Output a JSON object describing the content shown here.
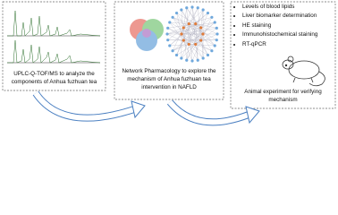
{
  "steps": [
    {
      "label": "UPLC-Q-TOF/MS to analyze the components of Anhua fuzhuan tea"
    },
    {
      "label": "Network Pharmacology to explore the mechanism of Anhua fuzhuan tea intervention in NAFLD"
    },
    {
      "label": "Animal experiment for verifying mechanism",
      "items": [
        "Levels of blood lipids",
        "Liver biomarker determination",
        "HE staining",
        "Immunohistochemical staining",
        "RT-qPCR"
      ]
    }
  ]
}
